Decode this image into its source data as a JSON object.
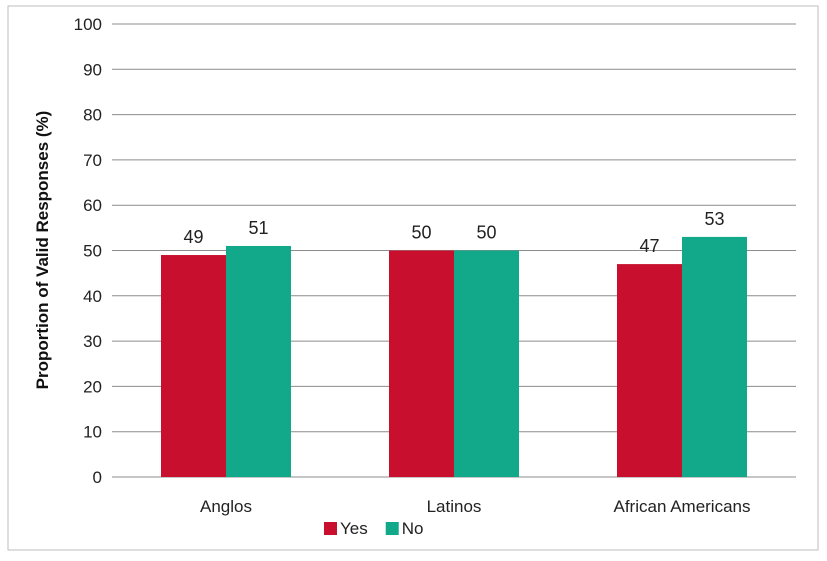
{
  "chart_data": {
    "type": "bar",
    "title": "",
    "xlabel": "",
    "ylabel": "Proportion of Valid Responses (%)",
    "ylim": [
      0,
      100
    ],
    "yticks": [
      0,
      10,
      20,
      30,
      40,
      50,
      60,
      70,
      80,
      90,
      100
    ],
    "grid": true,
    "legend": "bottom",
    "categories": [
      "Anglos",
      "Latinos",
      "African Americans"
    ],
    "series": [
      {
        "name": "Yes",
        "values": [
          49,
          50,
          47
        ],
        "color": "#c8102e"
      },
      {
        "name": "No",
        "values": [
          51,
          50,
          53
        ],
        "color": "#12a98b"
      }
    ]
  }
}
